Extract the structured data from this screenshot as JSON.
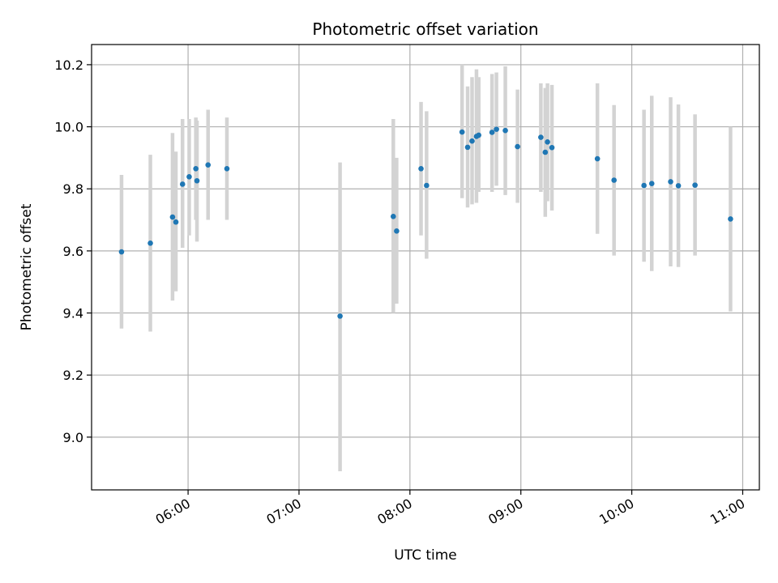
{
  "chart_data": {
    "type": "scatter",
    "title": "Photometric offset variation",
    "xlabel": "UTC time",
    "ylabel": "Photometric offset",
    "x_unit": "hours UTC",
    "xlim": [
      5.13,
      11.15
    ],
    "ylim": [
      8.83,
      10.265
    ],
    "x_ticks": [
      {
        "value": 6,
        "label": "06:00"
      },
      {
        "value": 7,
        "label": "07:00"
      },
      {
        "value": 8,
        "label": "08:00"
      },
      {
        "value": 9,
        "label": "09:00"
      },
      {
        "value": 10,
        "label": "10:00"
      },
      {
        "value": 11,
        "label": "11:00"
      }
    ],
    "y_ticks": [
      {
        "value": 9.0,
        "label": "9.0"
      },
      {
        "value": 9.2,
        "label": "9.2"
      },
      {
        "value": 9.4,
        "label": "9.4"
      },
      {
        "value": 9.6,
        "label": "9.6"
      },
      {
        "value": 9.8,
        "label": "9.8"
      },
      {
        "value": 10.0,
        "label": "10.0"
      },
      {
        "value": 10.2,
        "label": "10.2"
      }
    ],
    "grid": true,
    "colors": {
      "points": "#1f77b4",
      "errorbars": "#d3d3d3",
      "grid": "#b0b0b0"
    },
    "series": [
      {
        "points": [
          {
            "x": 5.4,
            "y": 9.597,
            "lo": 9.35,
            "hi": 9.845
          },
          {
            "x": 5.66,
            "y": 9.625,
            "lo": 9.34,
            "hi": 9.91
          },
          {
            "x": 5.86,
            "y": 9.709,
            "lo": 9.44,
            "hi": 9.98
          },
          {
            "x": 5.89,
            "y": 9.693,
            "lo": 9.47,
            "hi": 9.92
          },
          {
            "x": 5.95,
            "y": 9.815,
            "lo": 9.61,
            "hi": 10.025
          },
          {
            "x": 6.01,
            "y": 9.839,
            "lo": 9.65,
            "hi": 10.025
          },
          {
            "x": 6.07,
            "y": 9.865,
            "lo": 9.7,
            "hi": 10.03
          },
          {
            "x": 6.08,
            "y": 9.826,
            "lo": 9.63,
            "hi": 10.02
          },
          {
            "x": 6.18,
            "y": 9.877,
            "lo": 9.7,
            "hi": 10.055
          },
          {
            "x": 6.35,
            "y": 9.865,
            "lo": 9.7,
            "hi": 10.03
          },
          {
            "x": 7.37,
            "y": 9.39,
            "lo": 8.89,
            "hi": 9.885
          },
          {
            "x": 7.85,
            "y": 9.711,
            "lo": 9.4,
            "hi": 10.025
          },
          {
            "x": 7.88,
            "y": 9.664,
            "lo": 9.43,
            "hi": 9.9
          },
          {
            "x": 8.1,
            "y": 9.865,
            "lo": 9.65,
            "hi": 10.08
          },
          {
            "x": 8.15,
            "y": 9.811,
            "lo": 9.575,
            "hi": 10.05
          },
          {
            "x": 8.47,
            "y": 9.983,
            "lo": 9.77,
            "hi": 10.2
          },
          {
            "x": 8.52,
            "y": 9.934,
            "lo": 9.74,
            "hi": 10.13
          },
          {
            "x": 8.56,
            "y": 9.954,
            "lo": 9.75,
            "hi": 10.16
          },
          {
            "x": 8.6,
            "y": 9.969,
            "lo": 9.755,
            "hi": 10.185
          },
          {
            "x": 8.62,
            "y": 9.973,
            "lo": 9.79,
            "hi": 10.16
          },
          {
            "x": 8.74,
            "y": 9.982,
            "lo": 9.79,
            "hi": 10.17
          },
          {
            "x": 8.78,
            "y": 9.992,
            "lo": 9.81,
            "hi": 10.175
          },
          {
            "x": 8.86,
            "y": 9.988,
            "lo": 9.78,
            "hi": 10.195
          },
          {
            "x": 8.97,
            "y": 9.936,
            "lo": 9.755,
            "hi": 10.12
          },
          {
            "x": 9.18,
            "y": 9.966,
            "lo": 9.79,
            "hi": 10.14
          },
          {
            "x": 9.22,
            "y": 9.918,
            "lo": 9.71,
            "hi": 10.125
          },
          {
            "x": 9.24,
            "y": 9.951,
            "lo": 9.76,
            "hi": 10.14
          },
          {
            "x": 9.28,
            "y": 9.933,
            "lo": 9.73,
            "hi": 10.135
          },
          {
            "x": 9.69,
            "y": 9.897,
            "lo": 9.655,
            "hi": 10.14
          },
          {
            "x": 9.84,
            "y": 9.828,
            "lo": 9.585,
            "hi": 10.07
          },
          {
            "x": 10.11,
            "y": 9.811,
            "lo": 9.565,
            "hi": 10.055
          },
          {
            "x": 10.18,
            "y": 9.817,
            "lo": 9.535,
            "hi": 10.1
          },
          {
            "x": 10.35,
            "y": 9.823,
            "lo": 9.55,
            "hi": 10.095
          },
          {
            "x": 10.42,
            "y": 9.81,
            "lo": 9.548,
            "hi": 10.072
          },
          {
            "x": 10.57,
            "y": 9.812,
            "lo": 9.585,
            "hi": 10.04
          },
          {
            "x": 10.89,
            "y": 9.703,
            "lo": 9.405,
            "hi": 10.0
          }
        ]
      }
    ]
  }
}
